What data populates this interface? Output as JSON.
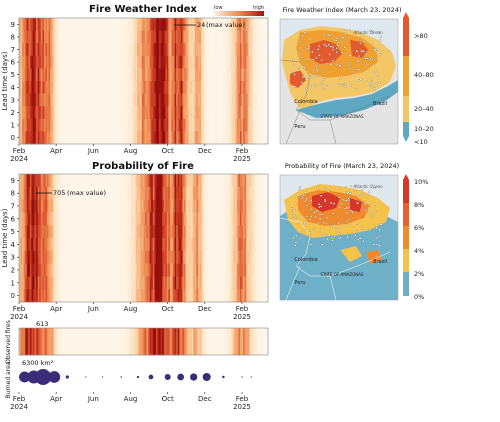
{
  "chart_data": [
    {
      "type": "heatmap",
      "title": "Fire Weather Index",
      "ylabel": "Lead time (days)",
      "y_ticks": [
        "0",
        "1",
        "2",
        "3",
        "4",
        "5",
        "6",
        "7",
        "8",
        "9"
      ],
      "x_ticks": [
        {
          "month": "Feb",
          "year": "2024"
        },
        {
          "month": "Apr",
          "year": ""
        },
        {
          "month": "Jun",
          "year": ""
        },
        {
          "month": "Aug",
          "year": ""
        },
        {
          "month": "Oct",
          "year": ""
        },
        {
          "month": "Dec",
          "year": ""
        },
        {
          "month": "Feb",
          "year": "2025"
        }
      ],
      "colorbar": {
        "low": "low",
        "high": "high"
      },
      "annotation": {
        "value": "24",
        "text": "(max value)"
      },
      "colors": {
        "low": "#fdf3e6",
        "high": "#a5120f"
      }
    },
    {
      "type": "heatmap",
      "title": "Probability of Fire",
      "ylabel": "Lead time (days)",
      "y_ticks": [
        "0",
        "1",
        "2",
        "3",
        "4",
        "5",
        "6",
        "7",
        "8",
        "9"
      ],
      "x_ticks": [
        {
          "month": "Feb",
          "year": "2024"
        },
        {
          "month": "Apr",
          "year": ""
        },
        {
          "month": "Jun",
          "year": ""
        },
        {
          "month": "Aug",
          "year": ""
        },
        {
          "month": "Oct",
          "year": ""
        },
        {
          "month": "Dec",
          "year": ""
        },
        {
          "month": "Feb",
          "year": "2025"
        }
      ],
      "annotation": {
        "value": "705",
        "text": "(max value)"
      }
    },
    {
      "type": "heatmap",
      "ylabel": "Observed fires",
      "annotation": {
        "value": "613"
      }
    },
    {
      "type": "scatter",
      "ylabel": "Burned area",
      "annotation": {
        "value": "6300 km²"
      },
      "x_ticks": [
        {
          "month": "Feb",
          "year": "2024"
        },
        {
          "month": "Apr",
          "year": ""
        },
        {
          "month": "Jun",
          "year": ""
        },
        {
          "month": "Aug",
          "year": ""
        },
        {
          "month": "Oct",
          "year": ""
        },
        {
          "month": "Dec",
          "year": ""
        },
        {
          "month": "Feb",
          "year": "2025"
        }
      ],
      "bubbles": [
        {
          "month_offset": 0.3,
          "value": 3000
        },
        {
          "month_offset": 0.8,
          "value": 4200
        },
        {
          "month_offset": 1.3,
          "value": 6300
        },
        {
          "month_offset": 1.9,
          "value": 3400
        },
        {
          "month_offset": 2.6,
          "value": 250
        },
        {
          "month_offset": 3.6,
          "value": 20
        },
        {
          "month_offset": 4.5,
          "value": 20
        },
        {
          "month_offset": 5.5,
          "value": 50
        },
        {
          "month_offset": 6.4,
          "value": 120
        },
        {
          "month_offset": 7.1,
          "value": 550
        },
        {
          "month_offset": 8.0,
          "value": 900
        },
        {
          "month_offset": 8.7,
          "value": 1100
        },
        {
          "month_offset": 9.4,
          "value": 1300
        },
        {
          "month_offset": 10.1,
          "value": 1600
        },
        {
          "month_offset": 11.0,
          "value": 150
        },
        {
          "month_offset": 12.0,
          "value": 40
        },
        {
          "month_offset": 12.5,
          "value": 20
        }
      ],
      "colors": {
        "bubble": "#3a2c78"
      }
    },
    {
      "type": "map",
      "title": "Fire Weather Index (March 23, 2024)",
      "labels": [
        "Atlantic Ocean",
        "Colombia",
        "Peru",
        "Brazil",
        "STATE OF AMAZONAS"
      ],
      "colorbar_labels": [
        ">80",
        "40–80",
        "20–40",
        "10–20",
        "<10"
      ],
      "colors": [
        "#e35a2c",
        "#f0a030",
        "#f3c766",
        "#5fa8c4"
      ]
    },
    {
      "type": "map",
      "title": "Probability of Fire (March 23, 2024)",
      "labels": [
        "Atlantic Ocean",
        "Colombia",
        "Peru",
        "Brazil",
        "STATE OF AMAZONAS"
      ],
      "colorbar_labels": [
        "10%",
        "8%",
        "6%",
        "4%",
        "2%",
        "0%"
      ],
      "colors": [
        "#d7372b",
        "#f08a2e",
        "#f5c24c",
        "#6fb0c9"
      ]
    }
  ]
}
